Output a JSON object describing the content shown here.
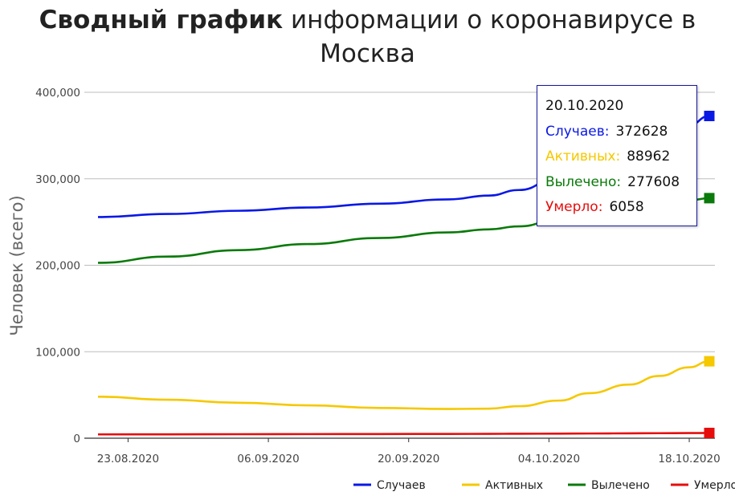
{
  "title": {
    "bold": "Сводный график",
    "rest": "информации о коронавирусе в",
    "line2": "Москва"
  },
  "tooltip": {
    "date": "20.10.2020",
    "rows": [
      {
        "label": "Случаев:",
        "value": "372628",
        "color": "#0a18e6"
      },
      {
        "label": "Активных:",
        "value": "88962",
        "color": "#f5c800"
      },
      {
        "label": "Вылечено:",
        "value": "277608",
        "color": "#0a7a0a"
      },
      {
        "label": "Умерло:",
        "value": "6058",
        "color": "#e60d0d"
      }
    ]
  },
  "chart_data": {
    "type": "line",
    "title": "Сводный график информации о коронавирусе в Москва",
    "ylabel": "Человек (всего)",
    "xlabel": "",
    "ylim": [
      0,
      400000
    ],
    "yticks": [
      0,
      100000,
      200000,
      300000,
      400000
    ],
    "ytick_labels": [
      "0",
      "100,000",
      "200,000",
      "300,000",
      "400,000"
    ],
    "xlim": [
      "2020-08-20",
      "2020-10-20"
    ],
    "xticks": [
      "2020-08-23",
      "2020-09-06",
      "2020-09-20",
      "2020-10-04",
      "2020-10-18"
    ],
    "xtick_labels": [
      "23.08.2020",
      "06.09.2020",
      "20.09.2020",
      "04.10.2020",
      "18.10.2020"
    ],
    "x": [
      "2020-08-20",
      "2020-08-27",
      "2020-09-03",
      "2020-09-10",
      "2020-09-17",
      "2020-09-24",
      "2020-09-28",
      "2020-10-01",
      "2020-10-05",
      "2020-10-08",
      "2020-10-12",
      "2020-10-15",
      "2020-10-18",
      "2020-10-20"
    ],
    "grid": true,
    "legend_position": "bottom-right",
    "series": [
      {
        "name": "Случаев",
        "color": "#0a18e6",
        "values": [
          255700,
          259300,
          263000,
          266800,
          271200,
          276200,
          280600,
          287000,
          302000,
          316000,
          331000,
          347000,
          362000,
          372628
        ]
      },
      {
        "name": "Активных",
        "color": "#f5c800",
        "values": [
          48000,
          44500,
          41000,
          38000,
          35000,
          33800,
          34200,
          37000,
          43500,
          52000,
          62000,
          72000,
          82000,
          88962
        ]
      },
      {
        "name": "Вылечено",
        "color": "#0a7a0a",
        "values": [
          202800,
          210000,
          217500,
          224500,
          231500,
          238000,
          241500,
          245000,
          253000,
          257500,
          263500,
          269500,
          275000,
          277608
        ]
      },
      {
        "name": "Умерло",
        "color": "#e60d0d",
        "values": [
          4400,
          4500,
          4650,
          4750,
          4850,
          4950,
          5050,
          5150,
          5300,
          5450,
          5650,
          5800,
          5950,
          6058
        ]
      }
    ]
  }
}
